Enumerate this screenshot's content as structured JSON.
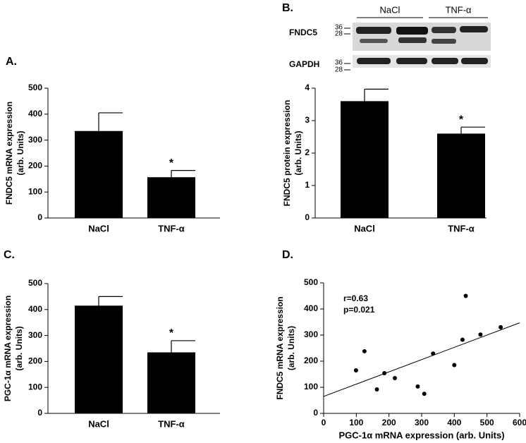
{
  "chart_data": [
    {
      "type": "bar",
      "label": "A.",
      "ylabel": [
        "FNDC5 mRNA expression",
        "(arb. Units)"
      ],
      "categories": [
        "NaCl",
        "TNF-α"
      ],
      "values": [
        335,
        157
      ],
      "errors": [
        70,
        26
      ],
      "significance": [
        null,
        "*"
      ],
      "color": "#000000",
      "ylim": [
        0,
        500
      ],
      "yticks": [
        0,
        100,
        200,
        300,
        400,
        500
      ]
    },
    {
      "type": "bar",
      "label": "B.",
      "ylabel": [
        "FNDC5 protein expression",
        "(arb. Units)"
      ],
      "categories": [
        "NaCl",
        "TNF-α"
      ],
      "values": [
        3.6,
        2.6
      ],
      "errors": [
        0.37,
        0.2
      ],
      "significance": [
        null,
        "*"
      ],
      "color": "#000000",
      "ylim": [
        0,
        4
      ],
      "yticks": [
        0,
        1,
        2,
        3,
        4
      ],
      "blot": {
        "groups": [
          "NaCl",
          "TNF-α"
        ],
        "rows": [
          {
            "name": "FNDC5",
            "markers": [
              "36",
              "28"
            ]
          },
          {
            "name": "GAPDH",
            "markers": [
              "36",
              "28"
            ]
          }
        ]
      }
    },
    {
      "type": "bar",
      "label": "C.",
      "ylabel": [
        "PGC-1α mRNA expression",
        "(arb. Units)"
      ],
      "categories": [
        "NaCl",
        "TNF-α"
      ],
      "values": [
        415,
        235
      ],
      "errors": [
        35,
        45
      ],
      "significance": [
        null,
        "*"
      ],
      "color": "#000000",
      "ylim": [
        0,
        500
      ],
      "yticks": [
        0,
        100,
        200,
        300,
        400,
        500
      ]
    },
    {
      "type": "scatter",
      "label": "D.",
      "xlabel": "PGC-1α mRNA expression (arb. Units)",
      "ylabel": [
        "FNDC5 mRNA expression",
        "(arb. Units)"
      ],
      "annotations": [
        "r=0.63",
        "p=0.021"
      ],
      "x": [
        99,
        125,
        163,
        186,
        218,
        288,
        308,
        335,
        400,
        425,
        435,
        480,
        542
      ],
      "y": [
        165,
        238,
        92,
        154,
        135,
        103,
        75,
        229,
        185,
        282,
        450,
        302,
        330
      ],
      "fit": {
        "x": [
          0,
          600
        ],
        "y": [
          65,
          347
        ]
      },
      "color": "#000000",
      "xlim": [
        0,
        600
      ],
      "xticks": [
        0,
        100,
        200,
        300,
        400,
        500,
        600
      ],
      "ylim": [
        0,
        500
      ],
      "yticks": [
        0,
        100,
        200,
        300,
        400,
        500
      ]
    }
  ]
}
